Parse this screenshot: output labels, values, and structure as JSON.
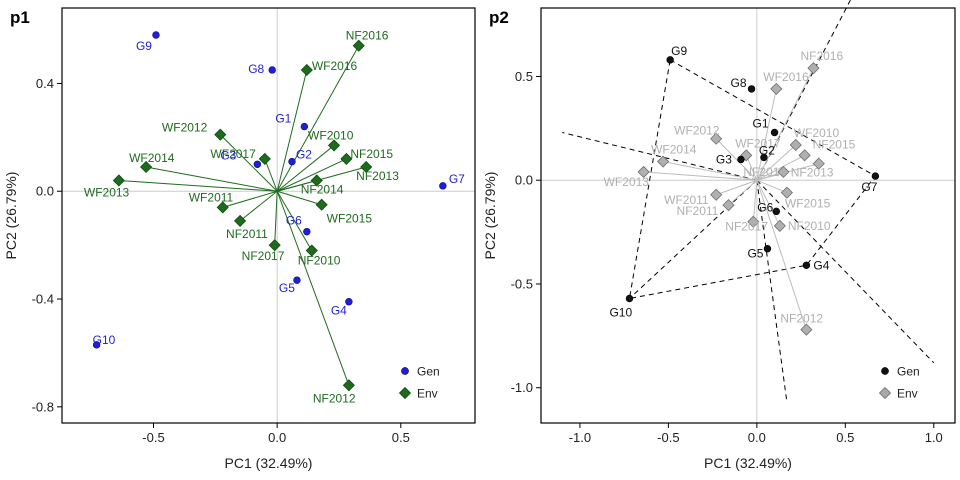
{
  "chart_data": [
    {
      "type": "scatter",
      "title": "p1",
      "xlabel": "PC1 (32.49%)",
      "ylabel": "PC2 (26.79%)",
      "xlim": [
        -0.87,
        0.8
      ],
      "ylim": [
        -0.86,
        0.68
      ],
      "xticks": [
        "-0.5",
        "0.0",
        "0.5"
      ],
      "xtick_values": [
        -0.5,
        0.0,
        0.5
      ],
      "yticks": [
        "-0.8",
        "-0.4",
        "0.0",
        "0.4"
      ],
      "ytick_values": [
        -0.8,
        -0.4,
        0.0,
        0.4
      ],
      "grid": "reference lines at 0",
      "legend_position": "bottom-right",
      "legend": [
        {
          "label": "Gen",
          "color": "#1f1fd6",
          "marker": "circle"
        },
        {
          "label": "Env",
          "color": "#1e6b1e",
          "marker": "diamond"
        }
      ],
      "colors": {
        "gen": "#1f1fd6",
        "env": "#1e6b1e",
        "env_vector": "#1e6b1e",
        "refline": "#cccccc"
      },
      "series": [
        {
          "name": "Gen",
          "points": [
            {
              "label": "G1",
              "x": 0.11,
              "y": 0.24
            },
            {
              "label": "G2",
              "x": 0.06,
              "y": 0.11
            },
            {
              "label": "G3",
              "x": -0.08,
              "y": 0.1
            },
            {
              "label": "G4",
              "x": 0.29,
              "y": -0.41
            },
            {
              "label": "G5",
              "x": 0.08,
              "y": -0.33
            },
            {
              "label": "G6",
              "x": 0.12,
              "y": -0.15
            },
            {
              "label": "G7",
              "x": 0.67,
              "y": 0.02
            },
            {
              "label": "G8",
              "x": -0.02,
              "y": 0.45
            },
            {
              "label": "G9",
              "x": -0.49,
              "y": 0.58
            },
            {
              "label": "G10",
              "x": -0.73,
              "y": -0.57
            }
          ]
        },
        {
          "name": "Env",
          "points": [
            {
              "label": "NF2016",
              "x": 0.33,
              "y": 0.54
            },
            {
              "label": "WF2016",
              "x": 0.12,
              "y": 0.45
            },
            {
              "label": "WF2012",
              "x": -0.23,
              "y": 0.21
            },
            {
              "label": "WF2010",
              "x": 0.23,
              "y": 0.17
            },
            {
              "label": "WF2017",
              "x": -0.05,
              "y": 0.12
            },
            {
              "label": "NF2015",
              "x": 0.28,
              "y": 0.12
            },
            {
              "label": "WF2014",
              "x": -0.53,
              "y": 0.09
            },
            {
              "label": "NF2013",
              "x": 0.36,
              "y": 0.09
            },
            {
              "label": "NF2014",
              "x": 0.16,
              "y": 0.04
            },
            {
              "label": "WF2013",
              "x": -0.64,
              "y": 0.04
            },
            {
              "label": "WF2011",
              "x": -0.22,
              "y": -0.06
            },
            {
              "label": "WF2015",
              "x": 0.18,
              "y": -0.05
            },
            {
              "label": "NF2011",
              "x": -0.15,
              "y": -0.11
            },
            {
              "label": "NF2017",
              "x": -0.01,
              "y": -0.2
            },
            {
              "label": "NF2010",
              "x": 0.14,
              "y": -0.22
            },
            {
              "label": "NF2012",
              "x": 0.29,
              "y": -0.72
            }
          ]
        }
      ]
    },
    {
      "type": "scatter",
      "title": "p2",
      "xlabel": "PC1 (32.49%)",
      "ylabel": "PC2 (26.79%)",
      "xlim": [
        -1.22,
        1.12
      ],
      "ylim": [
        -1.17,
        0.83
      ],
      "xticks": [
        "-1.0",
        "-0.5",
        "0.0",
        "0.5",
        "1.0"
      ],
      "xtick_values": [
        -1.0,
        -0.5,
        0.0,
        0.5,
        1.0
      ],
      "yticks": [
        "-1.0",
        "-0.5",
        "0.0",
        "0.5"
      ],
      "ytick_values": [
        -1.0,
        -0.5,
        0.0,
        0.5
      ],
      "grid": "reference lines at 0",
      "legend_position": "bottom-right",
      "legend": [
        {
          "label": "Gen",
          "color": "#111111",
          "marker": "circle"
        },
        {
          "label": "Env",
          "color": "#aaaaaa",
          "marker": "diamond"
        }
      ],
      "colors": {
        "gen": "#111111",
        "env": "#aaaaaa",
        "env_label": "#b0b0b0",
        "env_vector": "#bdbdbd",
        "hull": "#000000",
        "refline": "#cccccc"
      },
      "hull_order": [
        "G9",
        "G7",
        "G4",
        "G10",
        "G9"
      ],
      "dashed_rays": [
        {
          "x": 0.53,
          "y": 0.87
        },
        {
          "x": 1.0,
          "y": -0.88
        },
        {
          "x": 0.17,
          "y": -1.07
        },
        {
          "x": -1.1,
          "y": 0.23
        },
        {
          "x": -0.72,
          "y": -0.57
        }
      ],
      "series": [
        {
          "name": "Gen",
          "points": [
            {
              "label": "G9",
              "x": -0.49,
              "y": 0.58
            },
            {
              "label": "G8",
              "x": -0.03,
              "y": 0.44
            },
            {
              "label": "G1",
              "x": 0.1,
              "y": 0.23
            },
            {
              "label": "G2",
              "x": 0.04,
              "y": 0.11
            },
            {
              "label": "G3",
              "x": -0.09,
              "y": 0.1
            },
            {
              "label": "G6",
              "x": 0.11,
              "y": -0.15
            },
            {
              "label": "G5",
              "x": 0.06,
              "y": -0.33
            },
            {
              "label": "G4",
              "x": 0.28,
              "y": -0.41
            },
            {
              "label": "G7",
              "x": 0.67,
              "y": 0.02
            },
            {
              "label": "G10",
              "x": -0.72,
              "y": -0.57
            }
          ]
        },
        {
          "name": "Env",
          "points": [
            {
              "label": "NF2016",
              "x": 0.32,
              "y": 0.54
            },
            {
              "label": "WF2016",
              "x": 0.11,
              "y": 0.44
            },
            {
              "label": "WF2012",
              "x": -0.23,
              "y": 0.2
            },
            {
              "label": "WF2010",
              "x": 0.22,
              "y": 0.17
            },
            {
              "label": "WF2017",
              "x": -0.06,
              "y": 0.12
            },
            {
              "label": "NF2015",
              "x": 0.27,
              "y": 0.12
            },
            {
              "label": "WF2014",
              "x": -0.53,
              "y": 0.09
            },
            {
              "label": "NF2013",
              "x": 0.35,
              "y": 0.08
            },
            {
              "label": "NF2014",
              "x": 0.15,
              "y": 0.04
            },
            {
              "label": "WF2013",
              "x": -0.64,
              "y": 0.04
            },
            {
              "label": "WF2011",
              "x": -0.23,
              "y": -0.07
            },
            {
              "label": "WF2015",
              "x": 0.17,
              "y": -0.06
            },
            {
              "label": "NF2011",
              "x": -0.16,
              "y": -0.12
            },
            {
              "label": "NF2017",
              "x": -0.02,
              "y": -0.2
            },
            {
              "label": "NF2010",
              "x": 0.13,
              "y": -0.22
            },
            {
              "label": "NF2012",
              "x": 0.28,
              "y": -0.72
            }
          ]
        }
      ]
    }
  ]
}
